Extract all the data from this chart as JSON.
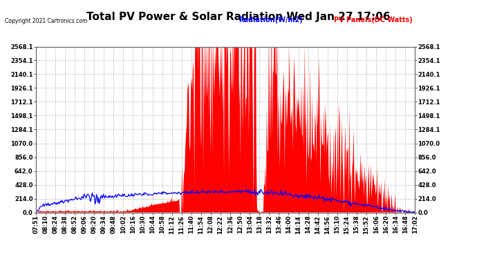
{
  "title": "Total PV Power & Solar Radiation Wed Jan 27 17:06",
  "copyright": "Copyright 2021 Cartronics.com",
  "legend_radiation": "Radiation(W/m2)",
  "legend_pv": "PV Panels(DC Watts)",
  "color_radiation": "#0000ff",
  "color_pv": "#ff0000",
  "ymin": 0.0,
  "ymax": 2568.1,
  "yticks": [
    0.0,
    214.0,
    428.0,
    642.0,
    856.0,
    1070.0,
    1284.1,
    1498.1,
    1712.1,
    1926.1,
    2140.1,
    2354.1,
    2568.1
  ],
  "background_color": "#ffffff",
  "grid_color": "#aaaaaa",
  "title_fontsize": 11,
  "tick_fontsize": 6,
  "time_labels": [
    "07:51",
    "08:10",
    "08:24",
    "08:38",
    "08:52",
    "09:06",
    "09:20",
    "09:34",
    "09:48",
    "10:02",
    "10:16",
    "10:30",
    "10:44",
    "10:58",
    "11:12",
    "11:26",
    "11:40",
    "11:54",
    "12:08",
    "12:22",
    "12:36",
    "12:50",
    "13:04",
    "13:18",
    "13:32",
    "13:46",
    "14:00",
    "14:14",
    "14:28",
    "14:42",
    "14:56",
    "15:10",
    "15:24",
    "15:38",
    "15:52",
    "16:06",
    "16:20",
    "16:34",
    "16:48",
    "17:02"
  ]
}
